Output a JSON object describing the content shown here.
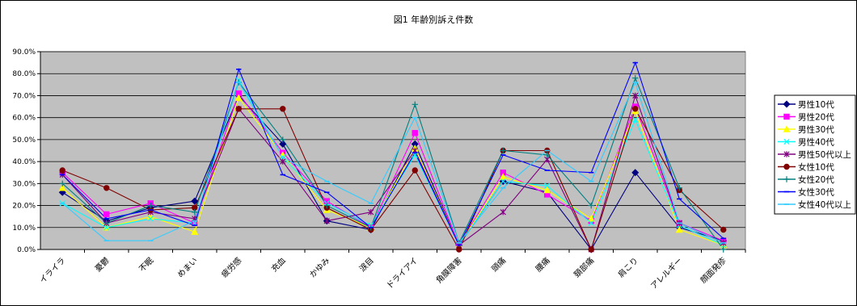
{
  "chart_data": {
    "type": "line",
    "title": "図1 年齢別訴え件数",
    "categories": [
      "イライラ",
      "憂鬱",
      "不眠",
      "めまい",
      "疲労感",
      "充血",
      "かゆみ",
      "涙目",
      "ドライアイ",
      "角膜障害",
      "頭痛",
      "腰痛",
      "頚部痛",
      "肩こり",
      "アレルギー",
      "顔面発疹"
    ],
    "yticks": [
      "0.0%",
      "10.0%",
      "20.0%",
      "30.0%",
      "40.0%",
      "50.0%",
      "60.0%",
      "70.0%",
      "80.0%",
      "90.0%"
    ],
    "ylim": [
      0,
      0.9
    ],
    "grid": true,
    "legend_position": "right",
    "series": [
      {
        "name": "男性10代",
        "color": "#000080",
        "marker": "diamond",
        "values": [
          0.26,
          0.13,
          0.19,
          0.22,
          0.7,
          0.48,
          0.13,
          0.09,
          0.48,
          0.02,
          0.31,
          0.26,
          0.0,
          0.35,
          0.1,
          0.04
        ]
      },
      {
        "name": "男性20代",
        "color": "#ff00ff",
        "marker": "square",
        "values": [
          0.35,
          0.16,
          0.21,
          0.12,
          0.71,
          0.44,
          0.22,
          0.1,
          0.53,
          0.02,
          0.35,
          0.25,
          0.13,
          0.65,
          0.12,
          0.04
        ]
      },
      {
        "name": "男性30代",
        "color": "#ffff00",
        "marker": "triangle",
        "values": [
          0.28,
          0.1,
          0.15,
          0.08,
          0.69,
          0.43,
          0.18,
          0.1,
          0.46,
          0.02,
          0.33,
          0.27,
          0.14,
          0.63,
          0.09,
          0.02
        ]
      },
      {
        "name": "男性40代",
        "color": "#00ffff",
        "marker": "x",
        "values": [
          0.21,
          0.1,
          0.14,
          0.12,
          0.77,
          0.42,
          0.21,
          0.11,
          0.43,
          0.02,
          0.31,
          0.29,
          0.12,
          0.59,
          0.11,
          0.02
        ]
      },
      {
        "name": "男性50代以上",
        "color": "#800080",
        "marker": "star",
        "values": [
          0.34,
          0.12,
          0.17,
          0.14,
          0.64,
          0.4,
          0.13,
          0.17,
          0.45,
          0.02,
          0.17,
          0.41,
          0.0,
          0.7,
          0.12,
          0.03
        ]
      },
      {
        "name": "女性10代",
        "color": "#800000",
        "marker": "circle",
        "values": [
          0.36,
          0.28,
          0.18,
          0.19,
          0.64,
          0.64,
          0.19,
          0.09,
          0.36,
          0.0,
          0.45,
          0.45,
          0.0,
          0.64,
          0.27,
          0.09
        ]
      },
      {
        "name": "女性20代",
        "color": "#008080",
        "marker": "plus",
        "values": [
          0.3,
          0.12,
          0.2,
          0.17,
          0.76,
          0.5,
          0.2,
          0.1,
          0.66,
          0.03,
          0.45,
          0.43,
          0.2,
          0.78,
          0.28,
          0.0
        ]
      },
      {
        "name": "女性30代",
        "color": "#0000ff",
        "marker": "dash",
        "values": [
          0.34,
          0.14,
          0.18,
          0.11,
          0.82,
          0.34,
          0.26,
          0.1,
          0.44,
          0.02,
          0.43,
          0.36,
          0.35,
          0.85,
          0.23,
          0.05
        ]
      },
      {
        "name": "女性40代以上",
        "color": "#33ccff",
        "marker": "dash",
        "values": [
          0.21,
          0.04,
          0.04,
          0.13,
          0.76,
          0.42,
          0.31,
          0.21,
          0.6,
          0.03,
          0.28,
          0.45,
          0.31,
          0.76,
          0.12,
          0.03
        ]
      }
    ]
  }
}
